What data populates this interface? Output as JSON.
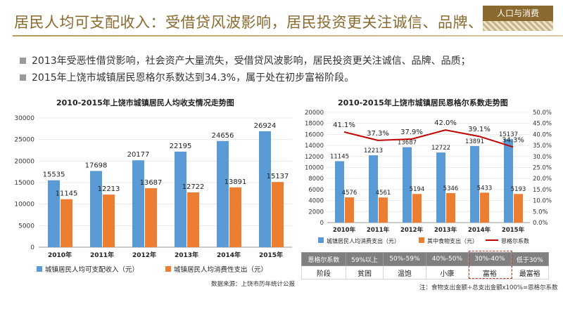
{
  "header": {
    "title": "居民人均可支配收入：受借贷风波影响，居民投资更关注诚信、品牌、品质",
    "tag": "人口与消费"
  },
  "bullets": [
    "2013年受恶性借贷影响，社会资产大量流失，受借贷风波影响，居民投资更关注诚信、品牌、品质；",
    "2015年上饶市城镇居民恩格尔系数达到34.3%，属于处在初步富裕阶段。"
  ],
  "colors": {
    "blue": "#5b9bd5",
    "orange": "#ed7d31",
    "red": "#c00000",
    "brand": "#8a6a2e"
  },
  "chart_data": [
    {
      "type": "bar",
      "title": "2010-2015年上饶市城镇居民人均收支情况走势图",
      "categories": [
        "2010年",
        "2011年",
        "2012年",
        "2013年",
        "2014年",
        "2015年"
      ],
      "series": [
        {
          "name": "城镇居民人均可支配收入（元）",
          "values": [
            15535,
            17698,
            20177,
            22195,
            24656,
            26924
          ]
        },
        {
          "name": "城镇居民人均消费性支出（元）",
          "values": [
            11145,
            12213,
            13687,
            12722,
            13891,
            15137
          ]
        }
      ],
      "ylim": [
        0,
        30000
      ],
      "yticks": [
        "0",
        "5000",
        "10000",
        "15000",
        "20000",
        "25000",
        "30000"
      ],
      "legend": "bottom",
      "source": "数据来源：上饶市历年统计公报"
    },
    {
      "type": "bar",
      "title": "2010-2015年上饶市城镇居民恩格尔系数走势图",
      "categories": [
        "2010年",
        "2011年",
        "2012年",
        "2013年",
        "2014年",
        "2015年"
      ],
      "series": [
        {
          "name": "城镇居民人均消费支出（元）",
          "values": [
            11145,
            12213,
            13687,
            12722,
            13891,
            15137
          ]
        },
        {
          "name": "其中食物支出（元）",
          "values": [
            4576,
            4561,
            5194,
            5346,
            5433,
            5193
          ]
        },
        {
          "name": "恩格尔系数",
          "type": "line",
          "values": [
            41.1,
            37.3,
            37.9,
            42.0,
            39.1,
            34.3
          ],
          "labels": [
            "41.1%",
            "37.3%",
            "37.9%",
            "42.0%",
            "39.1%",
            "34.3%"
          ]
        }
      ],
      "ylim": [
        0,
        20000
      ],
      "yticks": [
        "0",
        "2000",
        "4000",
        "6000",
        "8000",
        "10000",
        "12000",
        "14000",
        "16000",
        "18000",
        "20000"
      ],
      "y2lim": [
        0,
        50
      ],
      "y2ticks": [
        "0.0%",
        "5.0%",
        "10.0%",
        "15.0%",
        "20.0%",
        "25.0%",
        "30.0%",
        "35.0%",
        "40.0%",
        "45.0%",
        "50.0%"
      ],
      "legend": "bottom"
    }
  ],
  "engel_table": {
    "header": [
      "恩格尔系数",
      "59%以上",
      "50%-59%",
      "40%-50%",
      "30%-40%",
      "低于30%"
    ],
    "row": [
      "阶段",
      "贫困",
      "温饱",
      "小康",
      "富裕",
      "最富裕"
    ],
    "note": "注：食物支出金额÷总支出金额x100%=恩格尔系数"
  }
}
